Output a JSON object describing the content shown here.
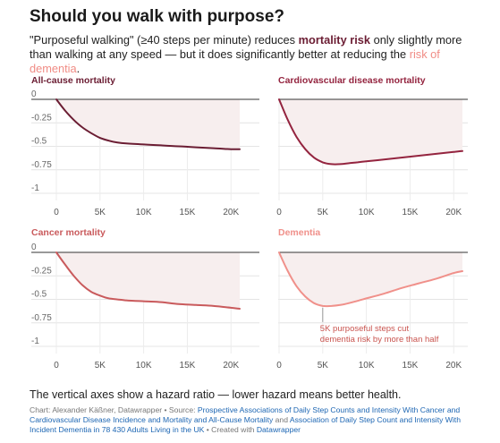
{
  "title": "Should you walk with purpose?",
  "subtitle": {
    "part1": "\"Purposeful walking\" (≥40 steps per minute) reduces ",
    "key1": "mortality risk",
    "part2": " only slightly more than walking at any speed — but it does significantly better at reducing the ",
    "key2": "risk of dementia",
    "part3": "."
  },
  "note": "The vertical axes show a hazard ratio — lower hazard means better health.",
  "footer": {
    "credit": "Chart: Alexander Käßner, Datawrapper • Source: ",
    "link1": "Prospective Associations of Daily Step Counts and Intensity With Cancer and Cardiovascular Disease Incidence and Mortality and All-Cause Mortality",
    "and": " and ",
    "link2": "Association of Daily Step Count and Intensity With Incident Dementia in 78 430 Adults Living in the UK",
    "created": " • Created with ",
    "link3": "Datawrapper"
  },
  "colors": {
    "all_cause": "#6b1d33",
    "cardio": "#94243f",
    "cancer": "#c95a5c",
    "dementia": "#f0908a",
    "fill": "#f7eeee"
  },
  "chart_data": [
    {
      "type": "line",
      "title": "All-cause mortality",
      "x": [
        0,
        1000,
        2000,
        3000,
        4000,
        5000,
        6000,
        7000,
        8000,
        10000,
        12000,
        14000,
        16000,
        18000,
        20000,
        21000
      ],
      "y": [
        0,
        -0.12,
        -0.22,
        -0.3,
        -0.36,
        -0.41,
        -0.44,
        -0.46,
        -0.47,
        -0.48,
        -0.49,
        -0.5,
        -0.51,
        -0.52,
        -0.53,
        -0.53
      ],
      "xlim": [
        0,
        21000
      ],
      "ylim": [
        -1,
        0
      ],
      "xticks": [
        "0",
        "5K",
        "10K",
        "15K",
        "20K"
      ],
      "yticks": [
        "0",
        "-0.25",
        "-0.5",
        "-0.75",
        "-1"
      ],
      "color": "#6b1d33"
    },
    {
      "type": "line",
      "title": "Cardiovascular disease mortality",
      "x": [
        0,
        1000,
        2000,
        3000,
        4000,
        5000,
        6000,
        7000,
        8000,
        9000,
        10000,
        12000,
        14000,
        16000,
        18000,
        20000,
        21000
      ],
      "y": [
        0,
        -0.22,
        -0.4,
        -0.53,
        -0.62,
        -0.67,
        -0.69,
        -0.69,
        -0.68,
        -0.67,
        -0.66,
        -0.64,
        -0.62,
        -0.6,
        -0.58,
        -0.56,
        -0.55
      ],
      "xlim": [
        0,
        21000
      ],
      "ylim": [
        -1,
        0
      ],
      "xticks": [
        "0",
        "5K",
        "10K",
        "15K",
        "20K"
      ],
      "yticks": [
        "0",
        "-0.25",
        "-0.5",
        "-0.75",
        "-1"
      ],
      "color": "#94243f"
    },
    {
      "type": "line",
      "title": "Cancer mortality",
      "x": [
        0,
        1000,
        2000,
        3000,
        4000,
        5000,
        6000,
        8000,
        10000,
        12000,
        14000,
        16000,
        18000,
        20000,
        21000
      ],
      "y": [
        0,
        -0.13,
        -0.25,
        -0.35,
        -0.42,
        -0.46,
        -0.49,
        -0.51,
        -0.52,
        -0.53,
        -0.55,
        -0.56,
        -0.57,
        -0.59,
        -0.6
      ],
      "xlim": [
        0,
        21000
      ],
      "ylim": [
        -1,
        0
      ],
      "xticks": [
        "0",
        "5K",
        "10K",
        "15K",
        "20K"
      ],
      "yticks": [
        "0",
        "-0.25",
        "-0.5",
        "-0.75",
        "-1"
      ],
      "color": "#c95a5c"
    },
    {
      "type": "line",
      "title": "Dementia",
      "x": [
        0,
        1000,
        2000,
        3000,
        4000,
        5000,
        6000,
        7000,
        8000,
        10000,
        12000,
        14000,
        16000,
        18000,
        20000,
        21000
      ],
      "y": [
        0,
        -0.2,
        -0.36,
        -0.47,
        -0.54,
        -0.57,
        -0.57,
        -0.56,
        -0.54,
        -0.49,
        -0.44,
        -0.38,
        -0.33,
        -0.28,
        -0.22,
        -0.2
      ],
      "xlim": [
        0,
        21000
      ],
      "ylim": [
        -1,
        0
      ],
      "xticks": [
        "0",
        "5K",
        "10K",
        "15K",
        "20K"
      ],
      "yticks": [
        "0",
        "-0.25",
        "-0.5",
        "-0.75",
        "-1"
      ],
      "color": "#f0908a",
      "annotation": {
        "x": 5000,
        "y": -0.57,
        "line1": "5K purposeful steps cut",
        "line2": "dementia risk by more than half"
      }
    }
  ]
}
